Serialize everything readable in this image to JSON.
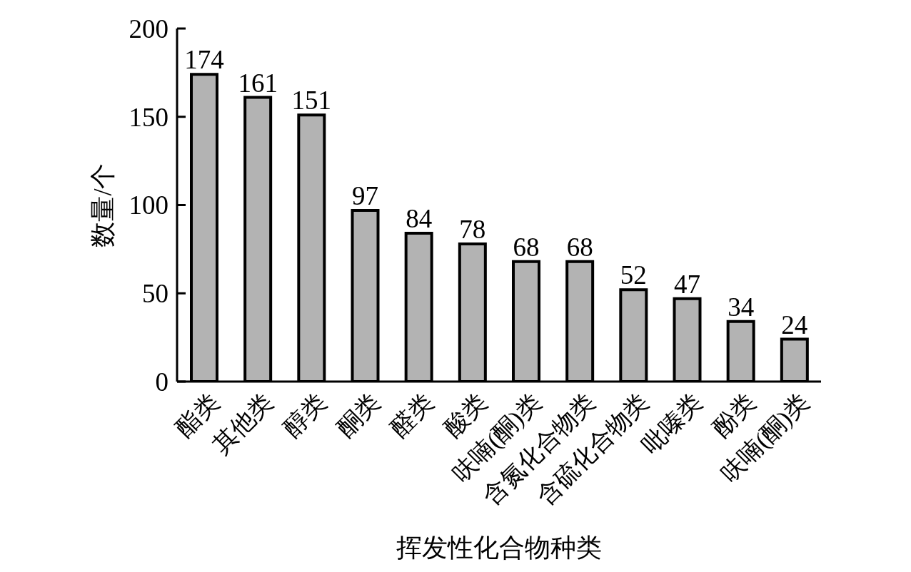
{
  "chart_data": {
    "type": "bar",
    "xlabel": "挥发性化合物种类",
    "ylabel": "数量/个",
    "categories": [
      "酯类",
      "其他类",
      "醇类",
      "酮类",
      "醛类",
      "酸类",
      "呋喃(酮)类",
      "含氮化合物类",
      "含硫化合物类",
      "吡嗪类",
      "酚类",
      "呋喃(酮)类"
    ],
    "values": [
      174,
      161,
      151,
      97,
      84,
      78,
      68,
      68,
      52,
      47,
      34,
      24
    ],
    "color": "#b3b3b3",
    "ylim": [
      0,
      200
    ],
    "yticks": [
      0,
      50,
      100,
      150,
      200
    ],
    "grid": false,
    "data_labels": true
  }
}
